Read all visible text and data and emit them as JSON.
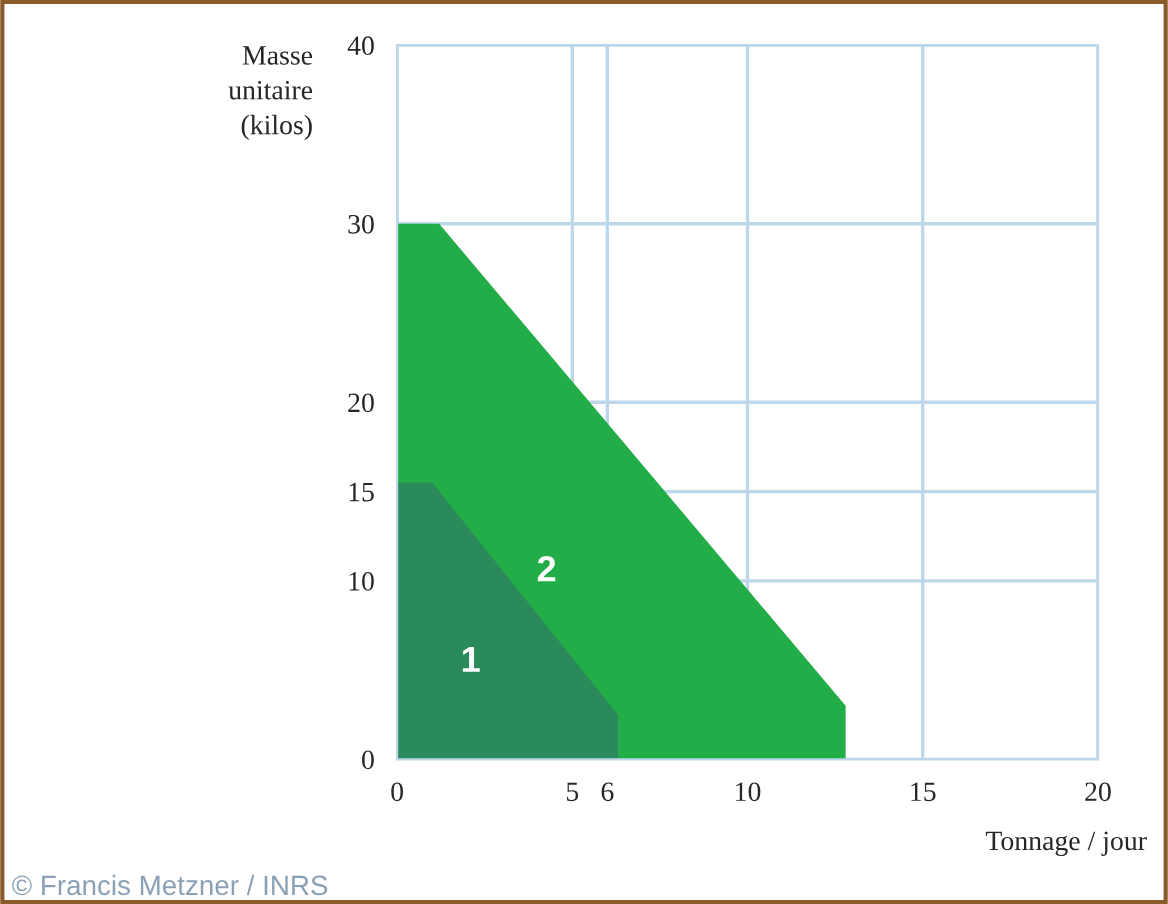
{
  "chart_data": {
    "type": "area",
    "xlabel": "Tonnage / jour",
    "ylabel": "Masse\nunitaire\n(kilos)",
    "series": [
      {
        "name": "2",
        "color": "#22ad48",
        "x": [
          0,
          1.2,
          12.8,
          12.8
        ],
        "values": [
          30,
          30,
          3,
          0
        ]
      },
      {
        "name": "1",
        "color": "#2a8a5a",
        "x": [
          0,
          1.0,
          6.3,
          6.3
        ],
        "values": [
          15.5,
          15.5,
          2.5,
          0
        ]
      }
    ],
    "xlim": [
      0,
      20
    ],
    "ylim": [
      0,
      40
    ],
    "xticks": [
      0,
      5,
      6,
      10,
      15,
      20
    ],
    "yticks": [
      0,
      10,
      15,
      20,
      30,
      40
    ],
    "grid": true,
    "annotations": [
      "© Francis Metzner / INRS"
    ]
  }
}
